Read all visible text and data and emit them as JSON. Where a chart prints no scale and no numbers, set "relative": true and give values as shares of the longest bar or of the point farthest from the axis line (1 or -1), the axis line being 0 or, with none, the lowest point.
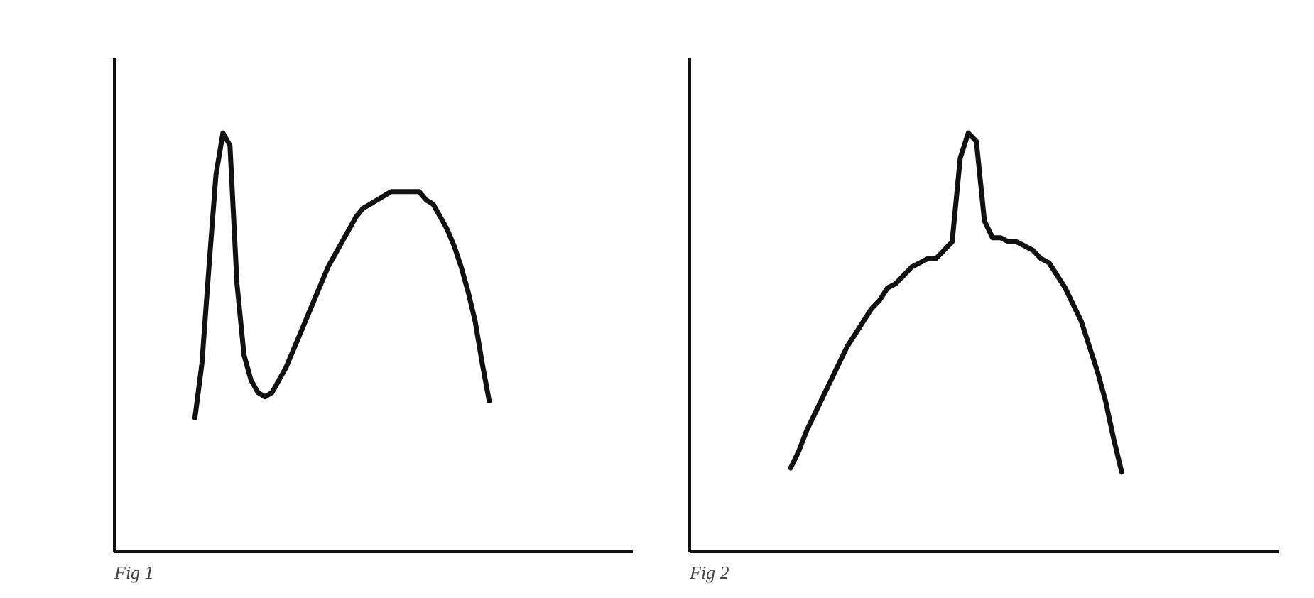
{
  "chart_data": [
    {
      "type": "line",
      "relative": true,
      "line_style": "solid",
      "annotations": [
        "Fig 1"
      ],
      "categories": [
        null,
        null,
        null,
        null,
        null,
        null,
        null,
        null,
        null,
        null,
        null,
        null,
        null,
        null,
        null,
        null,
        null,
        null,
        null,
        null,
        null,
        null,
        null,
        null,
        null,
        null,
        null,
        null,
        null,
        null,
        null,
        null,
        null,
        null,
        null,
        null,
        null,
        null,
        null,
        null,
        null,
        null,
        null,
        null,
        null,
        null,
        null,
        null,
        null,
        null,
        null,
        null,
        null,
        null,
        null,
        null,
        null,
        null,
        null,
        null,
        null,
        null,
        null,
        null,
        null,
        null,
        null,
        null,
        null,
        null,
        null,
        null,
        null,
        null
      ],
      "series": [
        {
          "color": "#111111",
          "values": [
            null,
            null,
            null,
            null,
            null,
            null,
            null,
            null,
            null,
            null,
            null,
            0.32,
            0.45,
            0.68,
            0.9,
            1.0,
            0.97,
            0.64,
            0.47,
            0.41,
            0.38,
            0.37,
            0.38,
            0.41,
            0.44,
            0.48,
            0.52,
            0.56,
            0.6,
            0.64,
            0.68,
            0.71,
            0.74,
            0.77,
            0.8,
            0.82,
            0.83,
            0.84,
            0.85,
            0.86,
            0.86,
            0.86,
            0.86,
            0.86,
            0.84,
            0.83,
            0.8,
            0.77,
            0.73,
            0.68,
            0.62,
            0.55,
            0.45,
            0.36,
            null,
            null,
            null,
            null,
            null,
            null,
            null,
            null,
            null,
            null,
            null,
            null,
            null,
            null,
            null,
            null,
            null,
            null,
            null,
            null
          ]
        }
      ]
    },
    {
      "type": "line",
      "relative": true,
      "line_style": "solid",
      "annotations": [
        "Fig 2"
      ],
      "categories": [
        null,
        null,
        null,
        null,
        null,
        null,
        null,
        null,
        null,
        null,
        null,
        null,
        null,
        null,
        null,
        null,
        null,
        null,
        null,
        null,
        null,
        null,
        null,
        null,
        null,
        null,
        null,
        null,
        null,
        null,
        null,
        null,
        null,
        null,
        null,
        null,
        null,
        null,
        null,
        null,
        null,
        null,
        null,
        null,
        null,
        null,
        null,
        null,
        null,
        null,
        null,
        null,
        null,
        null,
        null,
        null,
        null,
        null,
        null,
        null,
        null,
        null,
        null,
        null,
        null,
        null,
        null,
        null,
        null,
        null,
        null,
        null,
        null
      ],
      "series": [
        {
          "color": "#111111",
          "values": [
            null,
            null,
            null,
            null,
            null,
            null,
            null,
            null,
            null,
            null,
            null,
            null,
            0.2,
            0.24,
            0.29,
            0.33,
            0.37,
            0.41,
            0.45,
            0.49,
            0.52,
            0.55,
            0.58,
            0.6,
            0.63,
            0.64,
            0.66,
            0.68,
            0.69,
            0.7,
            0.7,
            0.72,
            0.74,
            0.94,
            1.0,
            0.98,
            0.79,
            0.75,
            0.75,
            0.74,
            0.74,
            0.73,
            0.72,
            0.7,
            0.69,
            0.66,
            0.63,
            0.59,
            0.55,
            0.49,
            0.43,
            0.36,
            0.27,
            0.19,
            null,
            null,
            null,
            null,
            null,
            null,
            null,
            null,
            null,
            null,
            null,
            null,
            null,
            null,
            null,
            null,
            null,
            null,
            null
          ]
        }
      ]
    }
  ]
}
